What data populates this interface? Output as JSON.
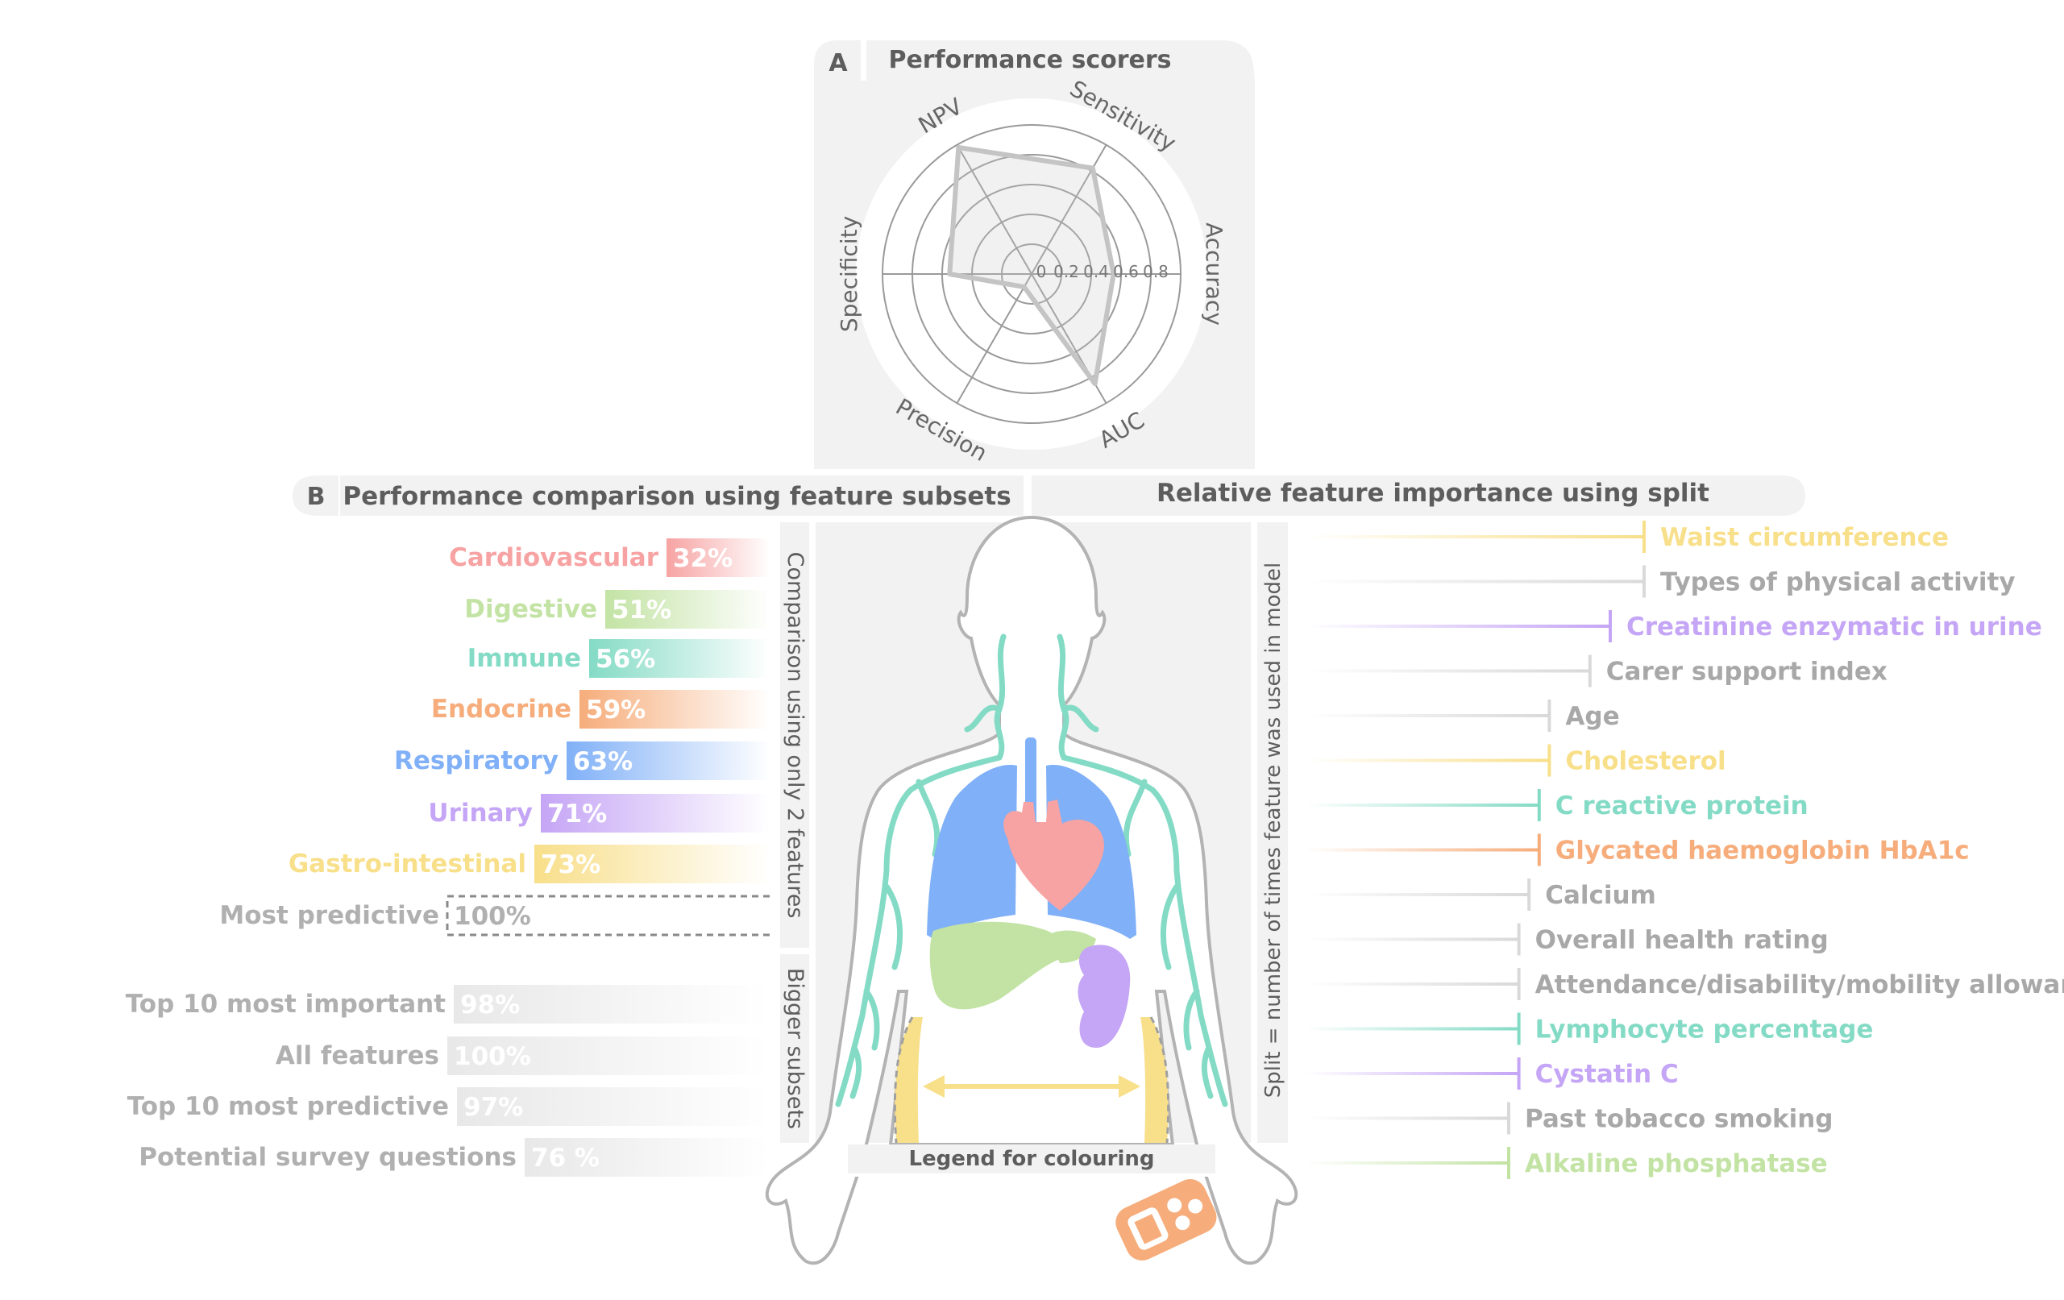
{
  "colors": {
    "cardiovascular": "#f7a3a3",
    "digestive": "#c3e3a4",
    "immune": "#84dbc5",
    "endocrine": "#f6ad7b",
    "respiratory": "#80b0f7",
    "urinary": "#c5a5f5",
    "gastro": "#f8df8a",
    "grey": "#b9b9b9",
    "text_grey": "#a8a8a8",
    "title_grey": "#5d5d5d",
    "panel": "#f2f2f2"
  },
  "panel_a": {
    "letter": "A",
    "title": "Performance scorers"
  },
  "panel_b": {
    "letter": "B",
    "title_left": "Performance comparison using feature subsets",
    "title_right": "Relative feature importance using split",
    "side_label_top": "Comparison using only 2 features",
    "side_label_bottom": "Bigger subsets",
    "split_axis_label": "Split = number of times feature was used in model",
    "legend_caption": "Legend for colouring"
  },
  "chart_data": [
    {
      "type": "radar",
      "axes": [
        "Sensitivity",
        "Accuracy",
        "AUC",
        "Precision",
        "Specificity",
        "NPV"
      ],
      "values": [
        0.82,
        0.55,
        0.85,
        0.1,
        0.55,
        0.98
      ],
      "ticks": [
        "0",
        "0.2",
        "0.4",
        "0.6",
        "0.8"
      ],
      "range": [
        0,
        1
      ]
    },
    {
      "type": "bar",
      "title": "Performance comparison using feature subsets",
      "groups": [
        {
          "name": "Comparison using only 2 features",
          "categories": [
            "Cardiovascular",
            "Digestive",
            "Immune",
            "Endocrine",
            "Respiratory",
            "Urinary",
            "Gastro-intestinal",
            "Most predictive"
          ],
          "values": [
            32,
            51,
            56,
            59,
            63,
            71,
            73,
            100
          ],
          "labels": [
            "32%",
            "51%",
            "56%",
            "59%",
            "63%",
            "71%",
            "73%",
            "100%"
          ],
          "colors": [
            "#f7a3a3",
            "#c3e3a4",
            "#84dbc5",
            "#f6ad7b",
            "#80b0f7",
            "#c5a5f5",
            "#f8df8a",
            "#ffffff"
          ]
        },
        {
          "name": "Bigger subsets",
          "categories": [
            "Top 10 most important",
            "All features",
            "Top 10 most predictive",
            "Potential survey questions"
          ],
          "values": [
            98,
            100,
            97,
            76
          ],
          "labels": [
            "98%",
            "100%",
            "97%",
            "76 %"
          ],
          "colors": [
            "#e8e8e8",
            "#e8e8e8",
            "#e8e8e8",
            "#e8e8e8"
          ]
        }
      ],
      "range": [
        0,
        100
      ]
    },
    {
      "type": "bar",
      "title": "Relative feature importance using split",
      "orientation": "horizontal",
      "ylabel": "Split = number of times feature was used in model",
      "categories": [
        "Waist circumference",
        "Types of physical activity",
        "Creatinine enzymatic in urine",
        "Carer support index",
        "Age",
        "Cholesterol",
        "C reactive protein",
        "Glycated haemoglobin HbA1c",
        "Calcium",
        "Overall health rating",
        "Attendance/disability/mobility allowance",
        "Lymphocyte percentage",
        "Cystatin C",
        "Past tobacco smoking",
        "Alkaline phosphatase"
      ],
      "values": [
        100,
        100,
        90,
        84,
        72,
        72,
        69,
        69,
        66,
        63,
        63,
        63,
        63,
        60,
        60
      ],
      "colors": [
        "#f8df8a",
        "#d9d9d9",
        "#c5a5f5",
        "#d9d9d9",
        "#d9d9d9",
        "#f8df8a",
        "#84dbc5",
        "#f6ad7b",
        "#d9d9d9",
        "#d9d9d9",
        "#d9d9d9",
        "#84dbc5",
        "#c5a5f5",
        "#d9d9d9",
        "#c3e3a4"
      ],
      "range": [
        0,
        100
      ]
    }
  ]
}
